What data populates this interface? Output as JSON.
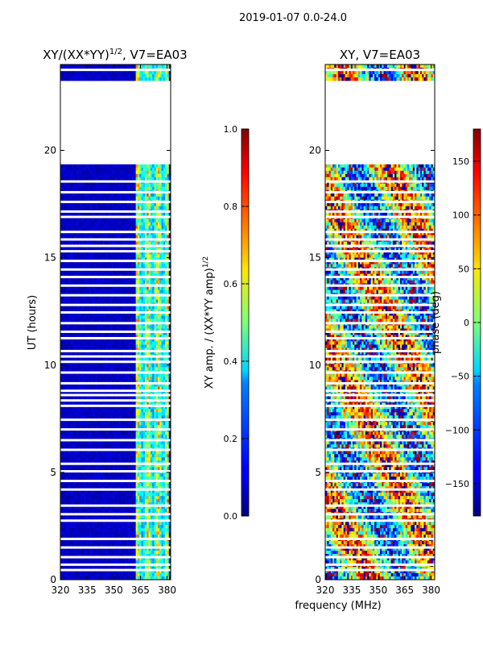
{
  "figure": {
    "suptitle": "2019-01-07 0.0-24.0",
    "shared_xlabel": "frequency (MHz)"
  },
  "chart_data": [
    {
      "type": "heatmap",
      "title": "XY/(XX*YY)^1/2, V7=EA03",
      "title_main": "XY/(XX*YY)",
      "title_sup": "1/2",
      "title_tail": ", V7=EA03",
      "xlabel": "frequency (MHz)",
      "ylabel": "UT (hours)",
      "xlim": [
        320,
        382
      ],
      "ylim": [
        0,
        24
      ],
      "xticks": [
        320,
        335,
        350,
        365,
        380
      ],
      "yticks": [
        0,
        5,
        10,
        15,
        20
      ],
      "colorbar": {
        "label": "XY amp. / (XX*YY amp)^1/2",
        "label_main": "XY amp. / (XX*YY amp)",
        "label_sup": "1/2",
        "range": [
          0.0,
          1.0
        ],
        "ticks": [
          "0.0",
          "0.2",
          "0.4",
          "0.6",
          "0.8",
          "1.0"
        ],
        "colormap": "jet"
      },
      "empty_ut_range": [
        19.3,
        23.3
      ],
      "bright_band_mhz": [
        362,
        381
      ],
      "typical_value_outside_band": 0.05,
      "typical_value_in_band": 0.5
    },
    {
      "type": "heatmap",
      "title": "XY, V7=EA03",
      "xlabel": "frequency (MHz)",
      "ylabel": "",
      "xlim": [
        320,
        382
      ],
      "ylim": [
        0,
        24
      ],
      "xticks": [
        320,
        335,
        350,
        365,
        380
      ],
      "yticks": [
        0,
        5,
        10,
        15,
        20
      ],
      "colorbar": {
        "label": "phase (deg)",
        "range": [
          -180,
          180
        ],
        "ticks": [
          "−150",
          "−100",
          "−50",
          "0",
          "50",
          "100",
          "150"
        ],
        "colormap": "jet"
      },
      "empty_ut_range": [
        19.3,
        23.3
      ]
    }
  ]
}
